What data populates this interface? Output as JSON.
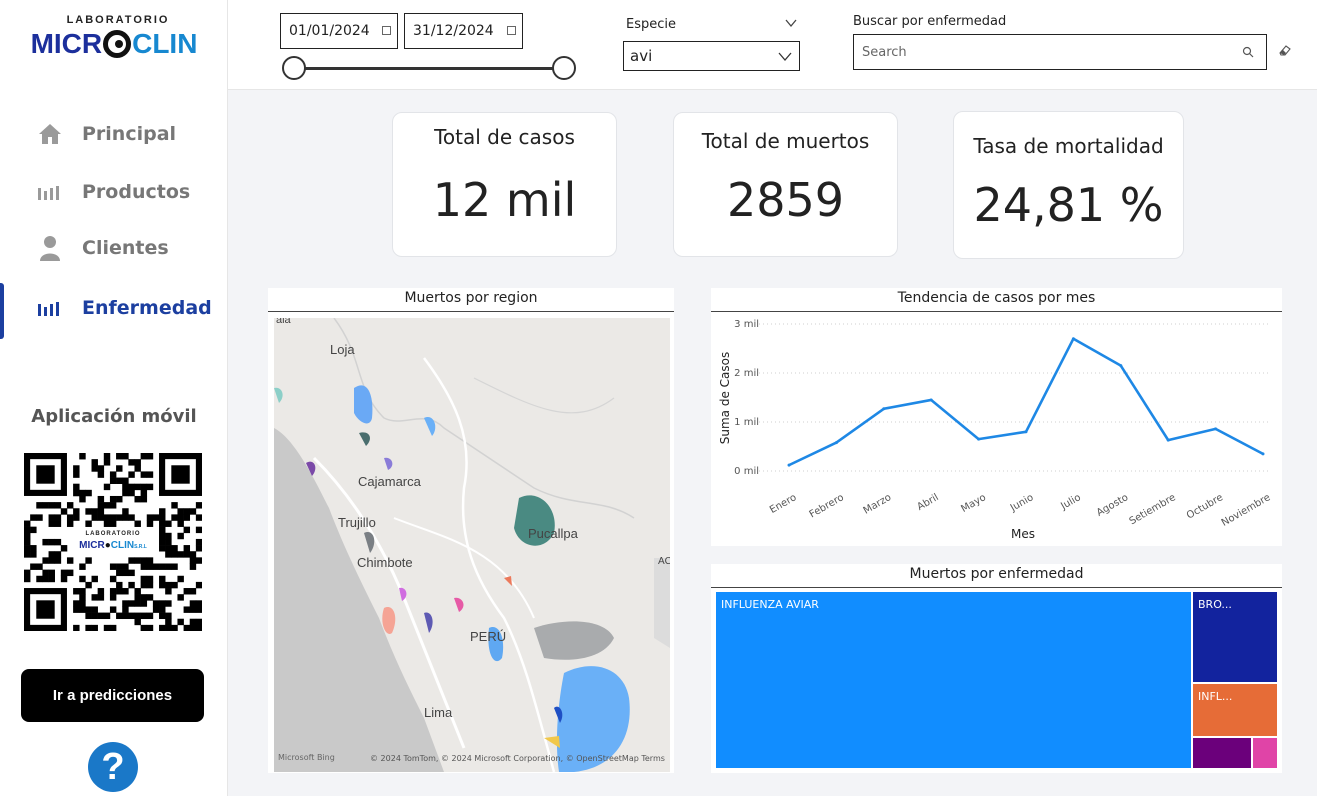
{
  "brand": {
    "top": "LABORATORIO",
    "main_left": "MICR",
    "main_right": "CLIN"
  },
  "nav": [
    {
      "label": "Principal",
      "icon": "home-icon"
    },
    {
      "label": "Productos",
      "icon": "bars-icon"
    },
    {
      "label": "Clientes",
      "icon": "user-icon"
    },
    {
      "label": "Enfermedad",
      "icon": "bars-icon",
      "active": true
    }
  ],
  "mobile": {
    "title": "Aplicación móvil",
    "qr_top": "LABORATORIO",
    "qr_left": "MICR",
    "qr_right": "CLIN",
    "qr_suffix": "S.R.L"
  },
  "predict_button": "Ir a predicciones",
  "filters": {
    "date_start": "01/01/2024",
    "date_end": "31/12/2024",
    "species_label": "Especie",
    "species_value": "avi",
    "search_label": "Buscar por enfermedad",
    "search_placeholder": "Search"
  },
  "kpis": [
    {
      "title": "Total de casos",
      "value": "12 mil"
    },
    {
      "title": "Total de muertos",
      "value": "2859"
    },
    {
      "title": "Tasa de mortalidad",
      "value": "24,81 %"
    }
  ],
  "map": {
    "title": "Muertos por region",
    "labels": [
      "Loja",
      "Cajamarca",
      "Trujillo",
      "Chimbote",
      "Pucallpa",
      "PERÚ",
      "Lima",
      "AC",
      "aia"
    ],
    "credit": "© 2024 TomTom, © 2024 Microsoft Corporation, © OpenStreetMap  Terms",
    "bing": "Microsoft Bing"
  },
  "colors": {
    "accent": "#1c3fa0",
    "line": "#1e88e5",
    "treemap_main": "#118dff"
  },
  "chart_data": [
    {
      "type": "line",
      "title": "Tendencia de casos por mes",
      "xlabel": "Mes",
      "ylabel": "Suma de Casos",
      "categories": [
        "Enero",
        "Febrero",
        "Marzo",
        "Abril",
        "Mayo",
        "Junio",
        "Julio",
        "Agosto",
        "Setiembre",
        "Octubre",
        "Noviembre"
      ],
      "values": [
        120,
        580,
        1270,
        1450,
        650,
        800,
        2700,
        2150,
        630,
        860,
        350
      ],
      "ylim": [
        0,
        3000
      ],
      "yticks": [
        0,
        1000,
        2000,
        3000
      ],
      "ytick_labels": [
        "0 mil",
        "1 mil",
        "2 mil",
        "3 mil"
      ],
      "grid": true,
      "legend": "none"
    },
    {
      "type": "treemap",
      "title": "Muertos por enfermedad",
      "items": [
        {
          "label": "INFLUENZA AVIAR",
          "value": 2400,
          "color": "#118dff"
        },
        {
          "label": "BRO...",
          "value": 220,
          "color": "#12239e"
        },
        {
          "label": "INFL...",
          "value": 130,
          "color": "#e66c37"
        },
        {
          "label": "",
          "value": 50,
          "color": "#6b007b"
        },
        {
          "label": "",
          "value": 20,
          "color": "#e044a7"
        }
      ]
    }
  ]
}
